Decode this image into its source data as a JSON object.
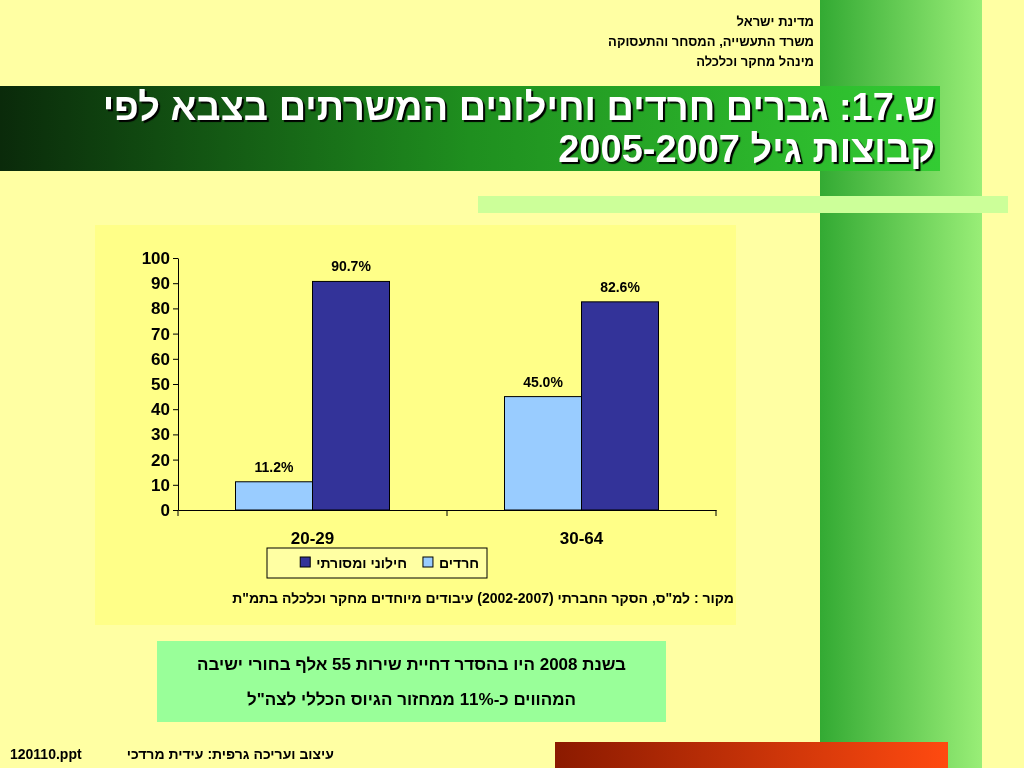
{
  "chart_data": {
    "type": "bar",
    "title": "ש.17: גברים חרדים וחילונים המשרתים בצבא לפי קבוצות גיל 2005-2007",
    "categories": [
      "20-29",
      "30-64"
    ],
    "series": [
      {
        "name": "חרדים",
        "color": "#99ccff",
        "values": [
          11.2,
          45.0
        ],
        "value_labels": [
          "11.2%",
          "45.0%"
        ]
      },
      {
        "name": "חילוני ומסורתי",
        "color": "#333399",
        "values": [
          90.7,
          82.6
        ],
        "value_labels": [
          "90.7%",
          "82.6%"
        ]
      }
    ],
    "ylim": [
      0,
      100
    ],
    "yticks": [
      0,
      10,
      20,
      30,
      40,
      50,
      60,
      70,
      80,
      90,
      100
    ],
    "grid": false,
    "legend": "bottom",
    "annotations": [
      "מדינת ישראל",
      "משרד התעשייה, המסחר והתעסוקה",
      "מינהל מחקר וכלכלה",
      "מקור : למ\"ס, הסקר החברתי (2002-2007) עיבודים מיוחדים מחקר וכלכלה בתמ\"ת",
      "בשנת 2008 היו בהסדר דחיית שירות 55 אלף בחורי ישיבה",
      "המהווים כ-11% ממחזור הגיוס הכללי לצה\"ל",
      "עיצוב ועריכה גרפית: עידית מרדכי",
      "120110.ppt"
    ]
  }
}
